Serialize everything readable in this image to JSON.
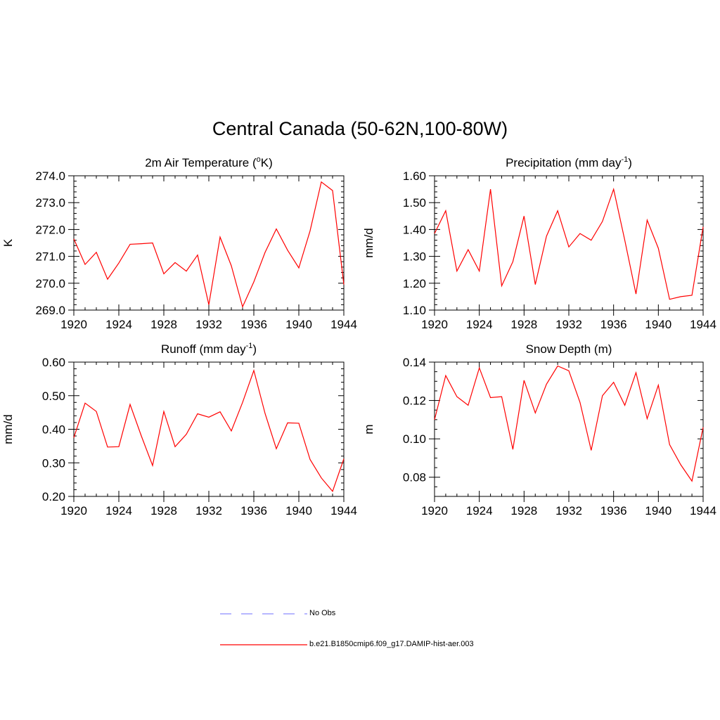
{
  "figure": {
    "title": "Central Canada (50-62N,100-80W)"
  },
  "legend": {
    "items": [
      {
        "label": "No Obs",
        "color": "#8c8cff",
        "style": "dashed"
      },
      {
        "label": "b.e21.B1850cmip6.f09_g17.DAMIP-hist-aer.003",
        "color": "#ff0000",
        "style": "solid"
      }
    ]
  },
  "chart_data": [
    {
      "type": "line",
      "title": "2m Air Temperature (",
      "title_sup": "o",
      "title_suffix": "K)",
      "xlabel": "",
      "ylabel": "K",
      "xlim": [
        1920,
        1944
      ],
      "ylim": [
        269.0,
        274.0
      ],
      "x_ticks": [
        1920,
        1924,
        1928,
        1932,
        1936,
        1940,
        1944
      ],
      "y_ticks": [
        "269.0",
        "270.0",
        "271.0",
        "272.0",
        "273.0",
        "274.0"
      ],
      "y_minor_step": 0.2,
      "color": "#ff0000",
      "x": [
        1920,
        1921,
        1922,
        1923,
        1924,
        1925,
        1926,
        1927,
        1928,
        1929,
        1930,
        1931,
        1932,
        1933,
        1934,
        1935,
        1936,
        1937,
        1938,
        1939,
        1940,
        1941,
        1942,
        1943,
        1944
      ],
      "values": [
        271.65,
        270.7,
        271.15,
        270.15,
        270.75,
        271.45,
        271.47,
        271.5,
        270.35,
        270.77,
        270.45,
        271.05,
        269.2,
        271.72,
        270.65,
        269.12,
        270.05,
        271.15,
        272.02,
        271.23,
        270.57,
        271.95,
        273.77,
        273.45,
        269.95
      ]
    },
    {
      "type": "line",
      "title": "Precipitation (mm day",
      "title_sup": "-1",
      "title_suffix": ")",
      "xlabel": "",
      "ylabel": "mm/d",
      "xlim": [
        1920,
        1944
      ],
      "ylim": [
        1.1,
        1.6
      ],
      "x_ticks": [
        1920,
        1924,
        1928,
        1932,
        1936,
        1940,
        1944
      ],
      "y_ticks": [
        "1.10",
        "1.20",
        "1.30",
        "1.40",
        "1.50",
        "1.60"
      ],
      "y_minor_step": 0.02,
      "color": "#ff0000",
      "x": [
        1920,
        1921,
        1922,
        1923,
        1924,
        1925,
        1926,
        1927,
        1928,
        1929,
        1930,
        1931,
        1932,
        1933,
        1934,
        1935,
        1936,
        1937,
        1938,
        1939,
        1940,
        1941,
        1942,
        1943,
        1944
      ],
      "values": [
        1.385,
        1.47,
        1.245,
        1.325,
        1.245,
        1.55,
        1.19,
        1.28,
        1.45,
        1.195,
        1.375,
        1.47,
        1.335,
        1.385,
        1.36,
        1.43,
        1.55,
        1.36,
        1.16,
        1.435,
        1.33,
        1.14,
        1.15,
        1.155,
        1.41
      ]
    },
    {
      "type": "line",
      "title": "Runoff (mm day",
      "title_sup": "-1",
      "title_suffix": ")",
      "xlabel": "",
      "ylabel": "mm/d",
      "xlim": [
        1920,
        1944
      ],
      "ylim": [
        0.2,
        0.6
      ],
      "x_ticks": [
        1920,
        1924,
        1928,
        1932,
        1936,
        1940,
        1944
      ],
      "y_ticks": [
        "0.20",
        "0.30",
        "0.40",
        "0.50",
        "0.60"
      ],
      "y_minor_step": 0.02,
      "color": "#ff0000",
      "x": [
        1920,
        1921,
        1922,
        1923,
        1924,
        1925,
        1926,
        1927,
        1928,
        1929,
        1930,
        1931,
        1932,
        1933,
        1934,
        1935,
        1936,
        1937,
        1938,
        1939,
        1940,
        1941,
        1942,
        1943,
        1944
      ],
      "values": [
        0.375,
        0.478,
        0.453,
        0.347,
        0.348,
        0.474,
        0.38,
        0.292,
        0.453,
        0.348,
        0.385,
        0.446,
        0.436,
        0.452,
        0.395,
        0.48,
        0.575,
        0.447,
        0.342,
        0.419,
        0.418,
        0.31,
        0.255,
        0.215,
        0.312
      ]
    },
    {
      "type": "line",
      "title": "Snow Depth (m)",
      "title_sup": "",
      "title_suffix": "",
      "xlabel": "",
      "ylabel": "m",
      "xlim": [
        1920,
        1944
      ],
      "ylim": [
        0.07,
        0.14
      ],
      "x_ticks": [
        1920,
        1924,
        1928,
        1932,
        1936,
        1940,
        1944
      ],
      "y_ticks": [
        "0.08",
        "0.10",
        "0.12",
        "0.14"
      ],
      "y_minor_step": 0.005,
      "color": "#ff0000",
      "x": [
        1920,
        1921,
        1922,
        1923,
        1924,
        1925,
        1926,
        1927,
        1928,
        1929,
        1930,
        1931,
        1932,
        1933,
        1934,
        1935,
        1936,
        1937,
        1938,
        1939,
        1940,
        1941,
        1942,
        1943,
        1944
      ],
      "values": [
        0.11,
        0.133,
        0.122,
        0.1175,
        0.137,
        0.1215,
        0.122,
        0.0945,
        0.1305,
        0.1135,
        0.1285,
        0.138,
        0.1355,
        0.119,
        0.094,
        0.1225,
        0.1295,
        0.1175,
        0.1345,
        0.1105,
        0.128,
        0.097,
        0.0865,
        0.078,
        0.106
      ]
    }
  ]
}
